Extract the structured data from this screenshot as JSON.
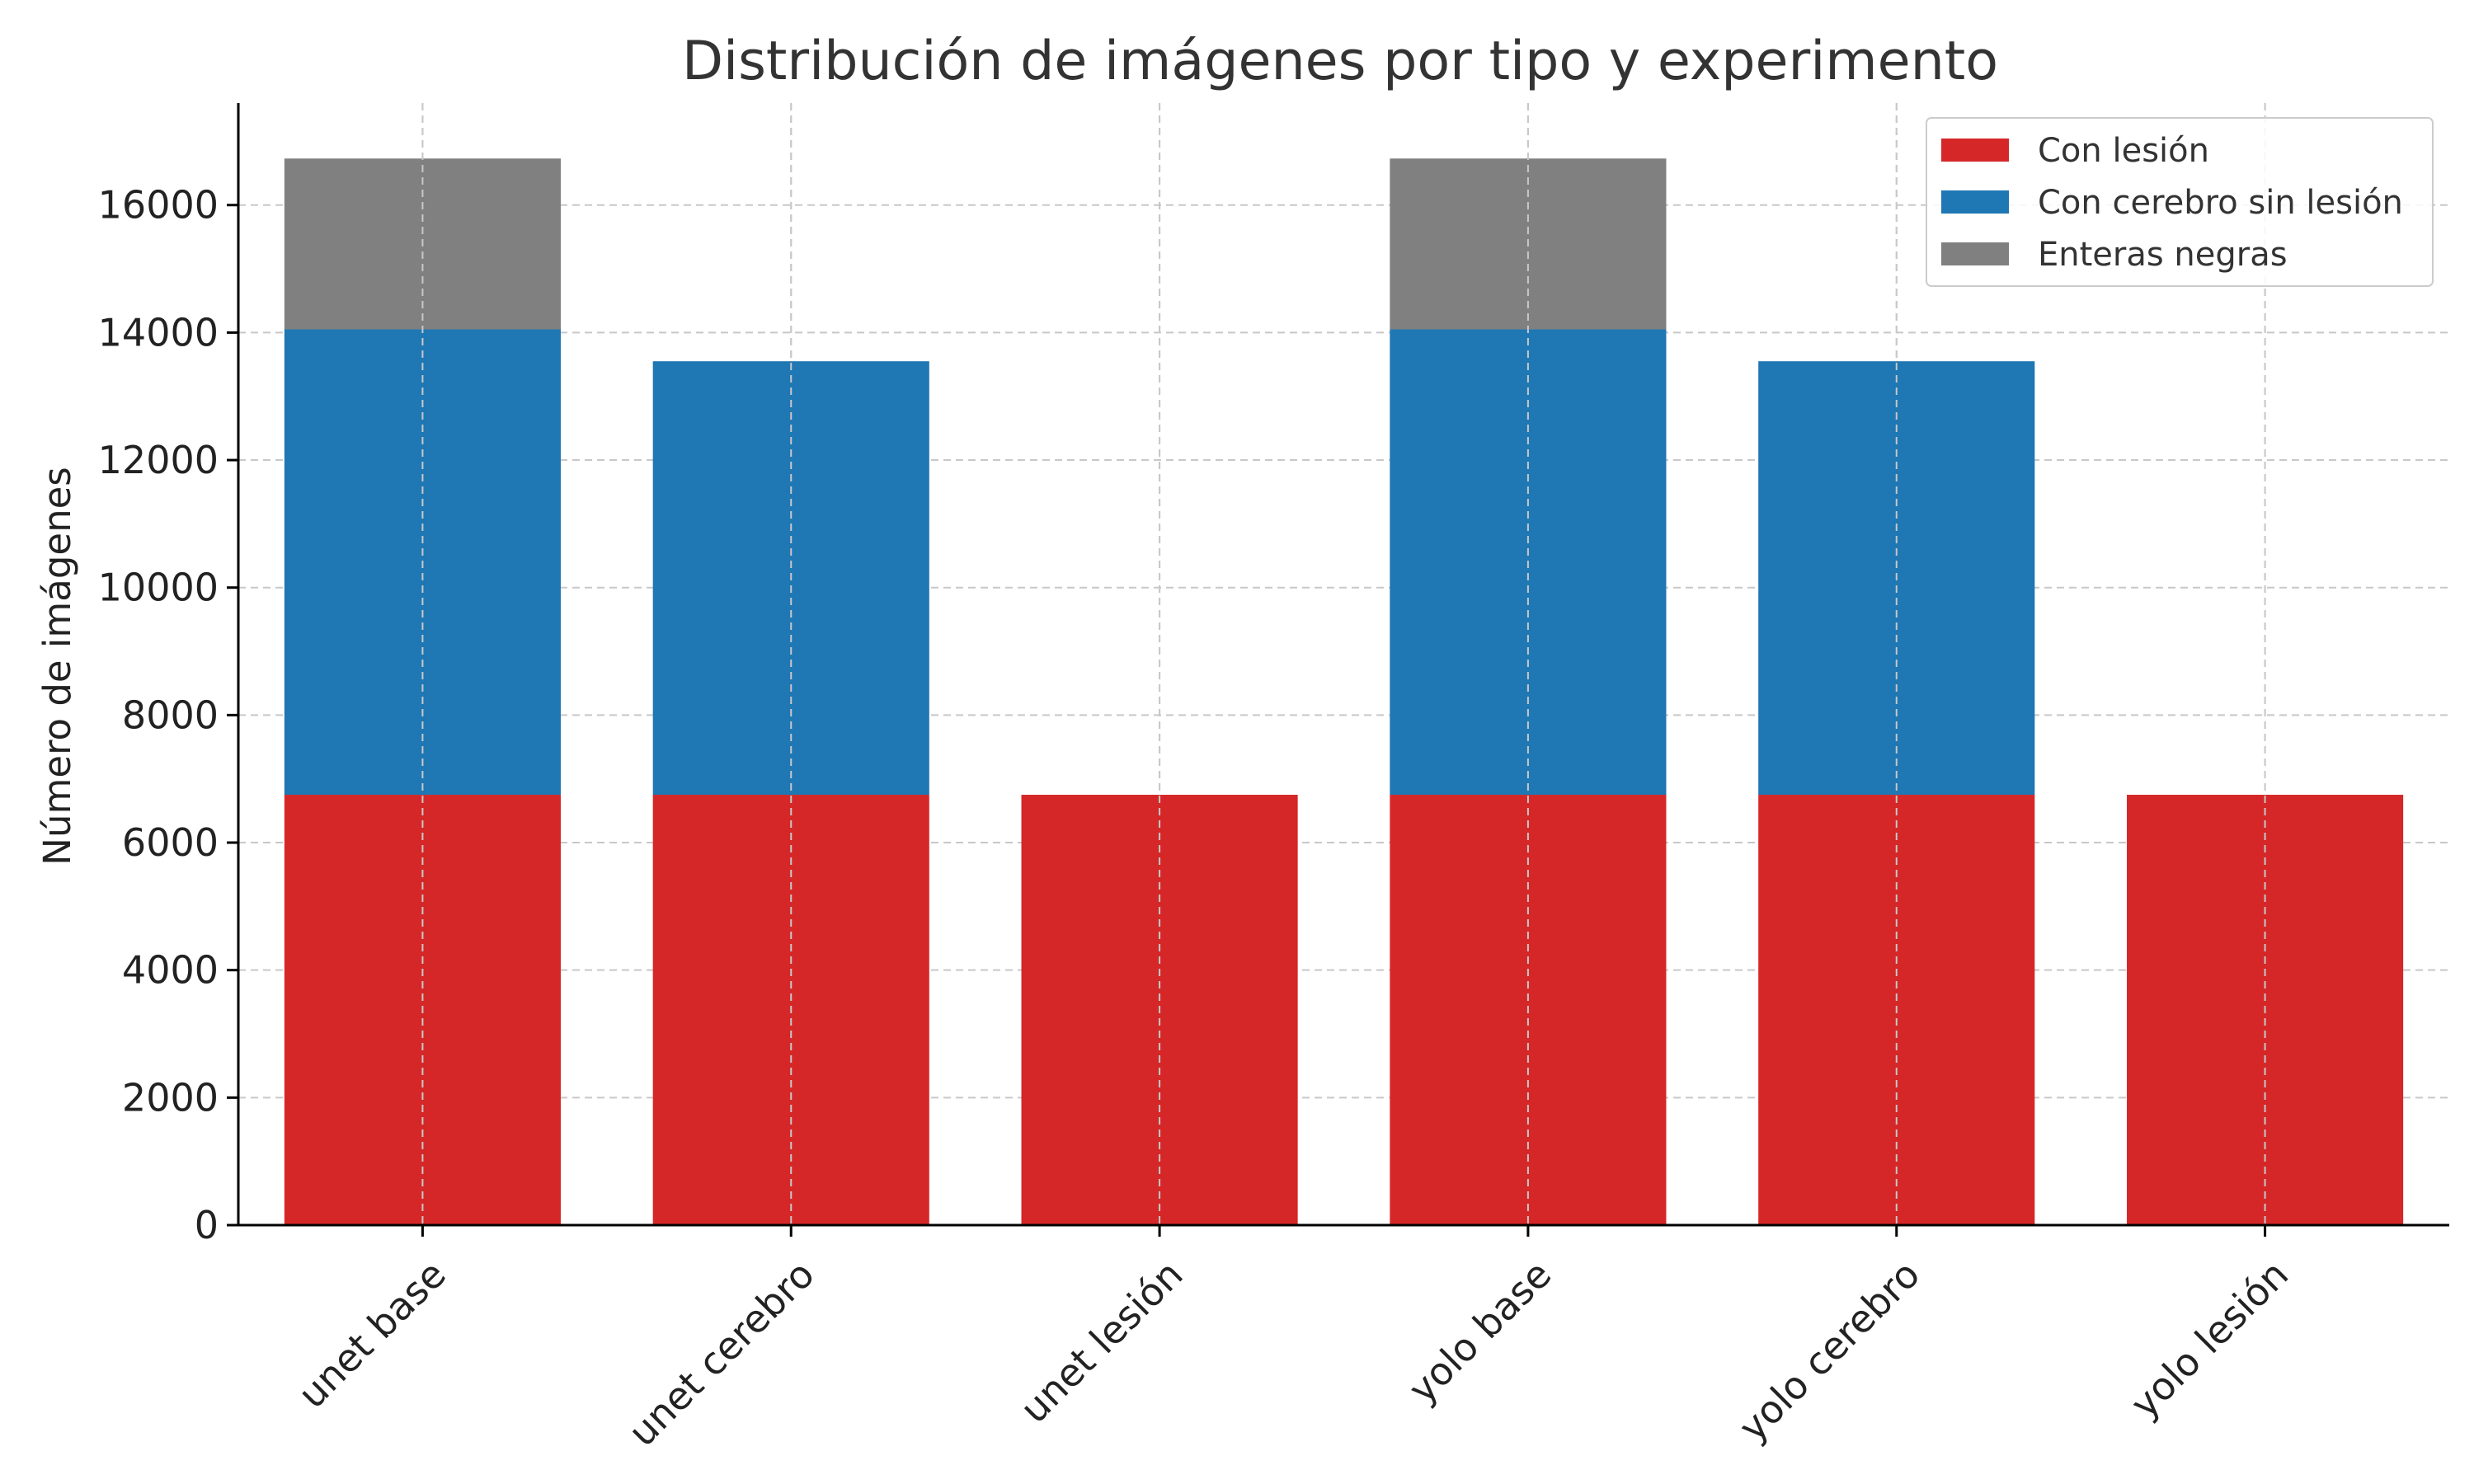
{
  "chart_data": {
    "type": "bar",
    "stacked": true,
    "title": "Distribución de imágenes por tipo y experimento",
    "xlabel": "",
    "ylabel": "Número de imágenes",
    "categories": [
      "unet base",
      "unet cerebro",
      "unet lesión",
      "yolo base",
      "yolo cerebro",
      "yolo lesión"
    ],
    "series": [
      {
        "name": "Con lesión",
        "color": "#d62728",
        "values": [
          6750,
          6750,
          6750,
          6750,
          6750,
          6750
        ]
      },
      {
        "name": "Con cerebro sin lesión",
        "color": "#1f77b4",
        "values": [
          7300,
          6800,
          0,
          7300,
          6800,
          0
        ]
      },
      {
        "name": "Enteras negras",
        "color": "#808080",
        "values": [
          2680,
          0,
          0,
          2680,
          0,
          0
        ]
      }
    ],
    "ylim": [
      0,
      17600
    ],
    "yticks": [
      0,
      2000,
      4000,
      6000,
      8000,
      10000,
      12000,
      14000,
      16000
    ],
    "grid": true,
    "legend_position": "top-right"
  }
}
